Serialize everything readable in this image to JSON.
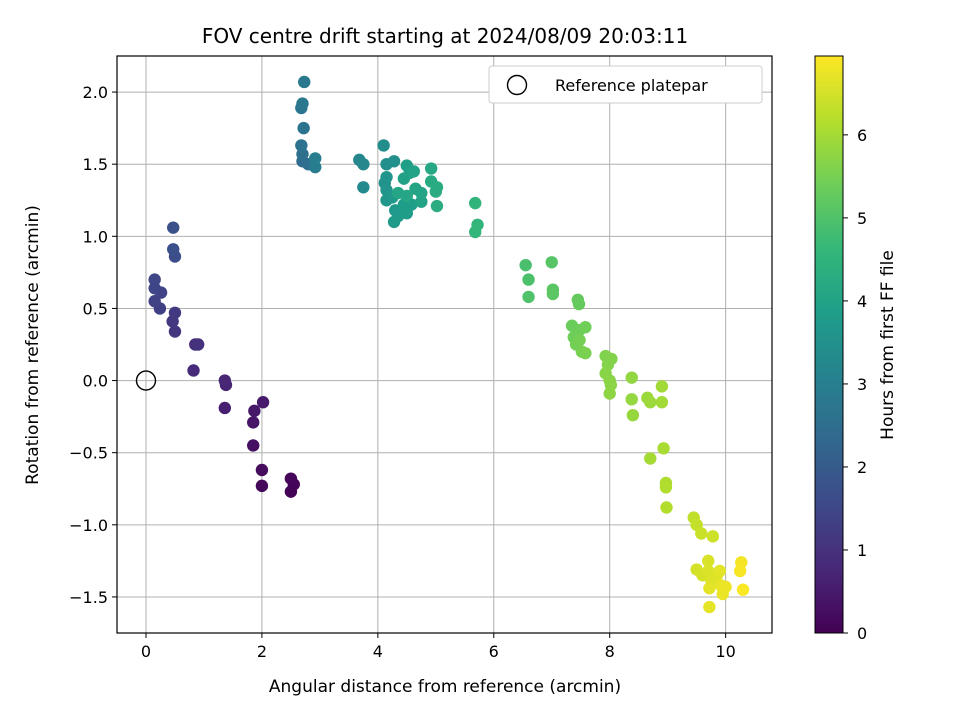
{
  "chart_data": {
    "type": "scatter",
    "title": "FOV centre drift starting at 2024/08/09 20:03:11",
    "xlabel": "Angular distance from reference (arcmin)",
    "ylabel": "Rotation from reference (arcmin)",
    "xlim": [
      -0.5,
      10.8
    ],
    "ylim": [
      -1.75,
      2.25
    ],
    "xticks": [
      "0",
      "2",
      "4",
      "6",
      "8",
      "10"
    ],
    "yticks": [
      "−1.5",
      "−1.0",
      "−0.5",
      "0.0",
      "0.5",
      "1.0",
      "1.5",
      "2.0"
    ],
    "grid": true,
    "legend": {
      "location": "top-right",
      "entries": [
        "Reference platepar"
      ]
    },
    "reference_point": {
      "x": 0.0,
      "y": 0.0,
      "marker": "open-circle"
    },
    "colorbar": {
      "label": "Hours from first FF file",
      "colormap": "viridis",
      "range": [
        0,
        6.95
      ],
      "ticks": [
        "0",
        "1",
        "2",
        "3",
        "4",
        "5",
        "6"
      ]
    },
    "colormap_stops": [
      "#440154",
      "#482878",
      "#3e4989",
      "#31688e",
      "#26828e",
      "#1f9e89",
      "#35b779",
      "#6ece58",
      "#b5de2b",
      "#fde725"
    ],
    "points": [
      {
        "x": 2.5,
        "y": -0.77,
        "t": 0.05
      },
      {
        "x": 2.55,
        "y": -0.72,
        "t": 0.08
      },
      {
        "x": 2.5,
        "y": -0.68,
        "t": 0.1
      },
      {
        "x": 2.0,
        "y": -0.73,
        "t": 0.15
      },
      {
        "x": 2.0,
        "y": -0.62,
        "t": 0.2
      },
      {
        "x": 1.85,
        "y": -0.45,
        "t": 0.3
      },
      {
        "x": 1.85,
        "y": -0.29,
        "t": 0.4
      },
      {
        "x": 1.87,
        "y": -0.21,
        "t": 0.45
      },
      {
        "x": 2.02,
        "y": -0.15,
        "t": 0.5
      },
      {
        "x": 1.36,
        "y": -0.19,
        "t": 0.6
      },
      {
        "x": 1.38,
        "y": -0.03,
        "t": 0.7
      },
      {
        "x": 1.36,
        "y": 0.0,
        "t": 0.75
      },
      {
        "x": 0.82,
        "y": 0.07,
        "t": 0.85
      },
      {
        "x": 0.85,
        "y": 0.25,
        "t": 0.95
      },
      {
        "x": 0.9,
        "y": 0.25,
        "t": 1.0
      },
      {
        "x": 0.5,
        "y": 0.34,
        "t": 1.1
      },
      {
        "x": 0.46,
        "y": 0.41,
        "t": 1.15
      },
      {
        "x": 0.5,
        "y": 0.47,
        "t": 1.2
      },
      {
        "x": 0.24,
        "y": 0.5,
        "t": 1.3
      },
      {
        "x": 0.15,
        "y": 0.55,
        "t": 1.35
      },
      {
        "x": 0.26,
        "y": 0.61,
        "t": 1.4
      },
      {
        "x": 0.15,
        "y": 0.64,
        "t": 1.45
      },
      {
        "x": 0.15,
        "y": 0.7,
        "t": 1.5
      },
      {
        "x": 0.5,
        "y": 0.86,
        "t": 1.65
      },
      {
        "x": 0.47,
        "y": 0.91,
        "t": 1.7
      },
      {
        "x": 0.47,
        "y": 1.06,
        "t": 1.75
      },
      {
        "x": 2.7,
        "y": 1.52,
        "t": 2.45
      },
      {
        "x": 2.8,
        "y": 1.5,
        "t": 2.5
      },
      {
        "x": 2.7,
        "y": 1.57,
        "t": 2.55
      },
      {
        "x": 2.68,
        "y": 1.63,
        "t": 2.6
      },
      {
        "x": 2.72,
        "y": 1.75,
        "t": 2.65
      },
      {
        "x": 2.68,
        "y": 1.89,
        "t": 2.7
      },
      {
        "x": 2.7,
        "y": 1.92,
        "t": 2.75
      },
      {
        "x": 2.73,
        "y": 2.07,
        "t": 2.8
      },
      {
        "x": 2.92,
        "y": 1.48,
        "t": 2.9
      },
      {
        "x": 2.92,
        "y": 1.54,
        "t": 2.95
      },
      {
        "x": 3.68,
        "y": 1.53,
        "t": 3.2
      },
      {
        "x": 3.75,
        "y": 1.5,
        "t": 3.25
      },
      {
        "x": 3.75,
        "y": 1.34,
        "t": 3.3
      },
      {
        "x": 4.1,
        "y": 1.63,
        "t": 3.4
      },
      {
        "x": 4.15,
        "y": 1.5,
        "t": 3.45
      },
      {
        "x": 4.28,
        "y": 1.52,
        "t": 3.5
      },
      {
        "x": 4.12,
        "y": 1.37,
        "t": 3.55
      },
      {
        "x": 4.15,
        "y": 1.41,
        "t": 3.6
      },
      {
        "x": 4.15,
        "y": 1.32,
        "t": 3.62
      },
      {
        "x": 4.15,
        "y": 1.25,
        "t": 3.65
      },
      {
        "x": 4.25,
        "y": 1.27,
        "t": 3.7
      },
      {
        "x": 4.3,
        "y": 1.18,
        "t": 3.72
      },
      {
        "x": 4.35,
        "y": 1.14,
        "t": 3.75
      },
      {
        "x": 4.28,
        "y": 1.1,
        "t": 3.78
      },
      {
        "x": 4.5,
        "y": 1.16,
        "t": 3.8
      },
      {
        "x": 4.45,
        "y": 1.22,
        "t": 3.82
      },
      {
        "x": 4.58,
        "y": 1.22,
        "t": 3.85
      },
      {
        "x": 4.5,
        "y": 1.49,
        "t": 3.9
      },
      {
        "x": 4.55,
        "y": 1.44,
        "t": 3.92
      },
      {
        "x": 4.45,
        "y": 1.4,
        "t": 3.95
      },
      {
        "x": 4.62,
        "y": 1.45,
        "t": 3.97
      },
      {
        "x": 4.75,
        "y": 1.24,
        "t": 4.0
      },
      {
        "x": 4.75,
        "y": 1.3,
        "t": 4.02
      },
      {
        "x": 4.65,
        "y": 1.33,
        "t": 4.05
      },
      {
        "x": 4.35,
        "y": 1.3,
        "t": 4.07
      },
      {
        "x": 4.5,
        "y": 1.28,
        "t": 4.1
      },
      {
        "x": 4.92,
        "y": 1.47,
        "t": 4.15
      },
      {
        "x": 4.92,
        "y": 1.38,
        "t": 4.2
      },
      {
        "x": 5.02,
        "y": 1.34,
        "t": 4.25
      },
      {
        "x": 5.0,
        "y": 1.31,
        "t": 4.27
      },
      {
        "x": 5.02,
        "y": 1.21,
        "t": 4.3
      },
      {
        "x": 5.68,
        "y": 1.23,
        "t": 4.5
      },
      {
        "x": 5.72,
        "y": 1.08,
        "t": 4.55
      },
      {
        "x": 5.68,
        "y": 1.03,
        "t": 4.6
      },
      {
        "x": 6.55,
        "y": 0.8,
        "t": 4.9
      },
      {
        "x": 6.6,
        "y": 0.7,
        "t": 4.95
      },
      {
        "x": 6.6,
        "y": 0.58,
        "t": 5.0
      },
      {
        "x": 7.0,
        "y": 0.82,
        "t": 5.1
      },
      {
        "x": 7.02,
        "y": 0.63,
        "t": 5.12
      },
      {
        "x": 7.02,
        "y": 0.6,
        "t": 5.15
      },
      {
        "x": 7.45,
        "y": 0.56,
        "t": 5.25
      },
      {
        "x": 7.47,
        "y": 0.53,
        "t": 5.28
      },
      {
        "x": 7.35,
        "y": 0.38,
        "t": 5.35
      },
      {
        "x": 7.48,
        "y": 0.35,
        "t": 5.38
      },
      {
        "x": 7.58,
        "y": 0.37,
        "t": 5.4
      },
      {
        "x": 7.38,
        "y": 0.3,
        "t": 5.42
      },
      {
        "x": 7.42,
        "y": 0.25,
        "t": 5.45
      },
      {
        "x": 7.48,
        "y": 0.28,
        "t": 5.47
      },
      {
        "x": 7.52,
        "y": 0.2,
        "t": 5.5
      },
      {
        "x": 7.58,
        "y": 0.19,
        "t": 5.52
      },
      {
        "x": 7.93,
        "y": 0.17,
        "t": 5.6
      },
      {
        "x": 8.03,
        "y": 0.15,
        "t": 5.62
      },
      {
        "x": 7.97,
        "y": 0.11,
        "t": 5.65
      },
      {
        "x": 7.93,
        "y": 0.05,
        "t": 5.68
      },
      {
        "x": 8.0,
        "y": 0.0,
        "t": 5.7
      },
      {
        "x": 8.02,
        "y": -0.03,
        "t": 5.72
      },
      {
        "x": 8.0,
        "y": -0.09,
        "t": 5.75
      },
      {
        "x": 8.38,
        "y": 0.02,
        "t": 5.8
      },
      {
        "x": 8.38,
        "y": -0.13,
        "t": 5.82
      },
      {
        "x": 8.4,
        "y": -0.24,
        "t": 5.85
      },
      {
        "x": 8.65,
        "y": -0.12,
        "t": 5.9
      },
      {
        "x": 8.7,
        "y": -0.15,
        "t": 5.92
      },
      {
        "x": 8.9,
        "y": -0.04,
        "t": 5.95
      },
      {
        "x": 8.9,
        "y": -0.15,
        "t": 5.97
      },
      {
        "x": 8.7,
        "y": -0.54,
        "t": 6.0
      },
      {
        "x": 8.93,
        "y": -0.47,
        "t": 6.05
      },
      {
        "x": 8.97,
        "y": -0.71,
        "t": 6.1
      },
      {
        "x": 8.97,
        "y": -0.74,
        "t": 6.12
      },
      {
        "x": 8.98,
        "y": -0.88,
        "t": 6.15
      },
      {
        "x": 9.45,
        "y": -0.95,
        "t": 6.3
      },
      {
        "x": 9.5,
        "y": -1.0,
        "t": 6.35
      },
      {
        "x": 9.58,
        "y": -1.06,
        "t": 6.4
      },
      {
        "x": 9.78,
        "y": -1.08,
        "t": 6.45
      },
      {
        "x": 9.5,
        "y": -1.31,
        "t": 6.5
      },
      {
        "x": 9.6,
        "y": -1.35,
        "t": 6.52
      },
      {
        "x": 9.7,
        "y": -1.25,
        "t": 6.55
      },
      {
        "x": 9.7,
        "y": -1.32,
        "t": 6.57
      },
      {
        "x": 9.75,
        "y": -1.38,
        "t": 6.6
      },
      {
        "x": 9.85,
        "y": -1.35,
        "t": 6.62
      },
      {
        "x": 9.9,
        "y": -1.32,
        "t": 6.65
      },
      {
        "x": 9.72,
        "y": -1.44,
        "t": 6.67
      },
      {
        "x": 9.72,
        "y": -1.57,
        "t": 6.7
      },
      {
        "x": 9.92,
        "y": -1.42,
        "t": 6.72
      },
      {
        "x": 9.95,
        "y": -1.48,
        "t": 6.75
      },
      {
        "x": 10.0,
        "y": -1.43,
        "t": 6.77
      },
      {
        "x": 10.27,
        "y": -1.26,
        "t": 6.85
      },
      {
        "x": 10.25,
        "y": -1.32,
        "t": 6.88
      },
      {
        "x": 10.3,
        "y": -1.45,
        "t": 6.92
      }
    ]
  }
}
